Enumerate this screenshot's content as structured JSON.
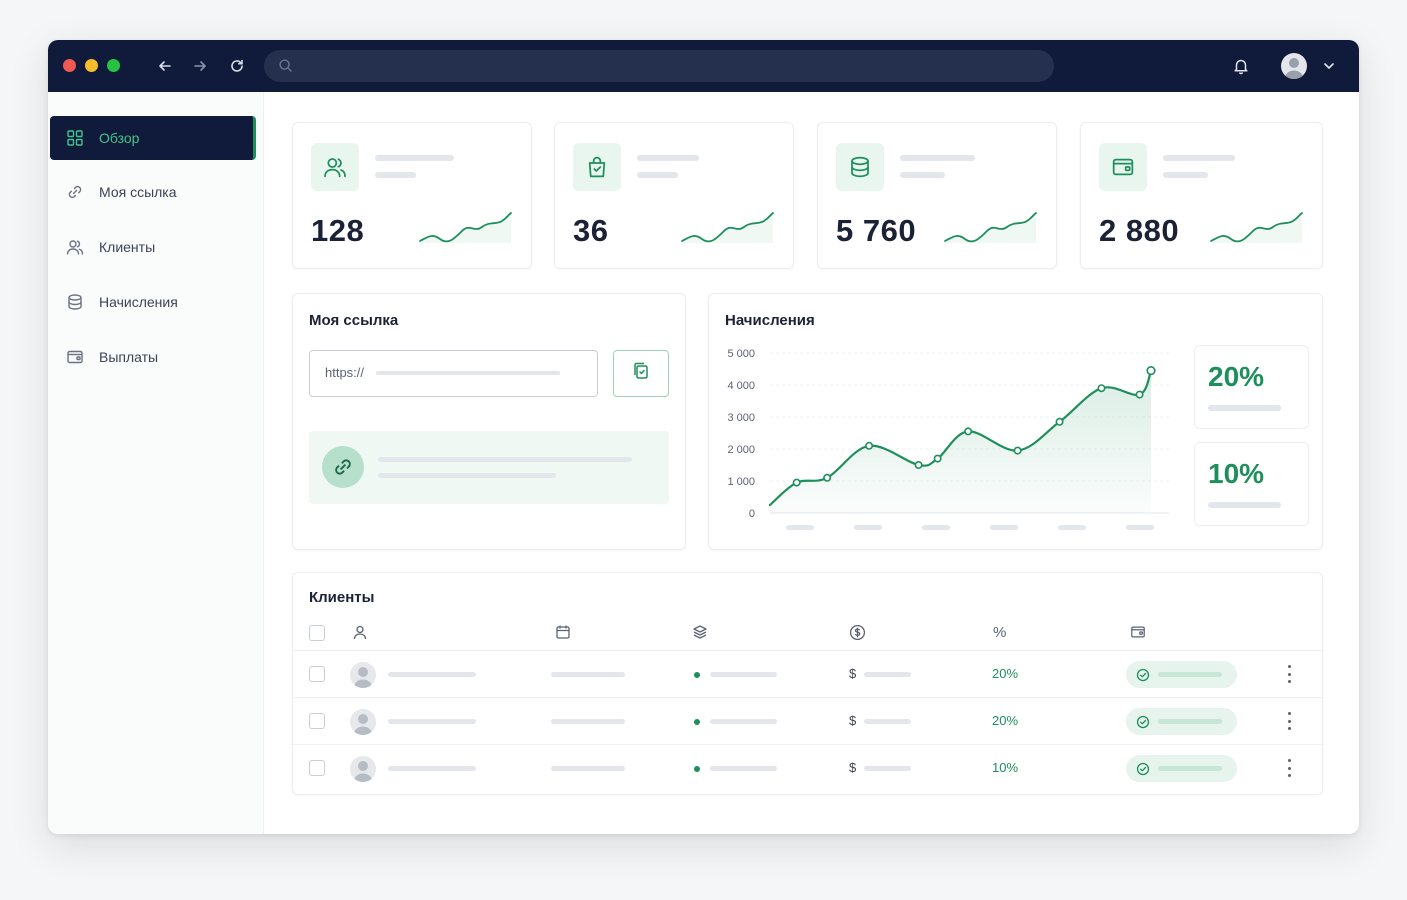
{
  "nav": [
    {
      "label": "Обзор",
      "icon": "grid-icon",
      "active": true
    },
    {
      "label": "Моя ссылка",
      "icon": "link-icon"
    },
    {
      "label": "Клиенты",
      "icon": "users-icon"
    },
    {
      "label": "Начисления",
      "icon": "database-icon"
    },
    {
      "label": "Выплаты",
      "icon": "wallet-icon"
    }
  ],
  "stats": [
    {
      "value": "128",
      "icon": "users-icon"
    },
    {
      "value": "36",
      "icon": "shopping-bag-icon"
    },
    {
      "value": "5 760",
      "icon": "database-icon"
    },
    {
      "value": "2 880",
      "icon": "wallet-icon"
    }
  ],
  "my_link": {
    "title": "Моя ссылка",
    "url_prefix": "https://"
  },
  "accruals": {
    "title": "Начисления",
    "percent_cards": [
      "20%",
      "10%"
    ]
  },
  "chart_data": {
    "type": "line",
    "title": "Начисления",
    "y_ticks": [
      "5 000",
      "4 000",
      "3 000",
      "2 000",
      "1 000",
      "0"
    ],
    "ylim": [
      0,
      5000
    ],
    "x_label_count": 6,
    "series": [
      {
        "x": [
          0,
          0.07,
          0.15,
          0.26,
          0.39,
          0.44,
          0.52,
          0.65,
          0.76,
          0.87,
          0.97,
          1.0
        ],
        "values": [
          250,
          950,
          1100,
          2100,
          1500,
          1700,
          2550,
          1950,
          2850,
          3900,
          3700,
          4450
        ]
      }
    ],
    "grid": true,
    "color": "#1d8f5c"
  },
  "clients": {
    "title": "Клиенты",
    "header_icons": [
      "user-icon",
      "calendar-icon",
      "layers-icon",
      "dollar-icon",
      "percent-icon",
      "wallet-icon"
    ],
    "percent_header": "%",
    "rows": [
      {
        "currency": "$",
        "percent": "20%"
      },
      {
        "currency": "$",
        "percent": "20%"
      },
      {
        "currency": "$",
        "percent": "10%"
      }
    ]
  },
  "colors": {
    "accent": "#1d8f5c",
    "navy": "#101a3a"
  }
}
